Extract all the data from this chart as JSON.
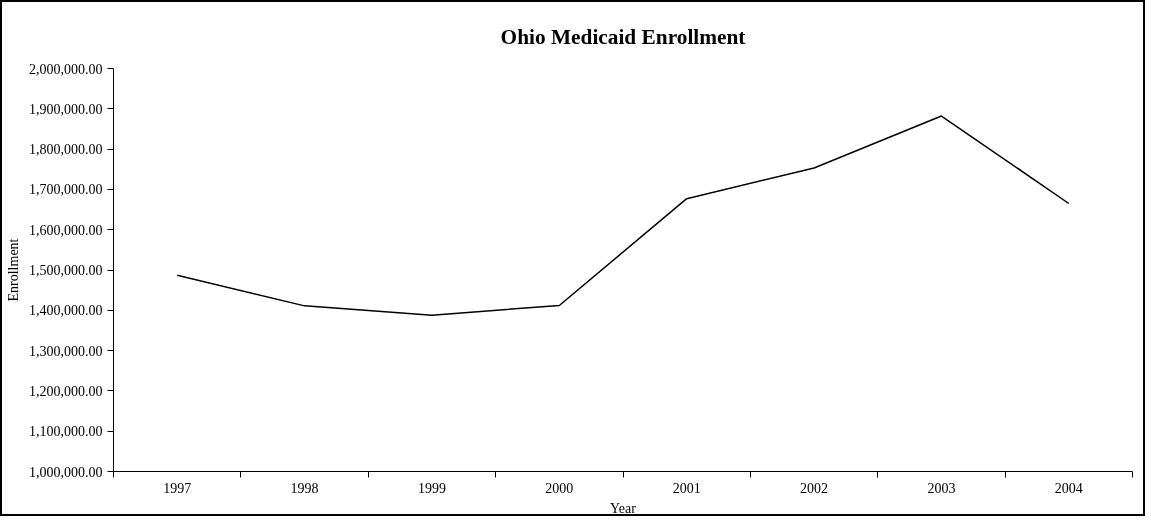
{
  "chart_data": {
    "type": "line",
    "title": "Ohio Medicaid Enrollment",
    "xlabel": "Year",
    "ylabel": "Enrollment",
    "categories": [
      "1997",
      "1998",
      "1999",
      "2000",
      "2001",
      "2002",
      "2003",
      "2004"
    ],
    "series": [
      {
        "color": "#000000",
        "values": [
          1487000,
          1411000,
          1388000,
          1412000,
          1677000,
          1753000,
          1882000,
          1665000
        ]
      }
    ],
    "ylim": [
      1000000,
      2000000
    ],
    "yticks": [
      {
        "value": 1000000,
        "label": "1,000,000.00"
      },
      {
        "value": 1100000,
        "label": "1,100,000.00"
      },
      {
        "value": 1200000,
        "label": "1,200,000.00"
      },
      {
        "value": 1300000,
        "label": "1,300,000.00"
      },
      {
        "value": 1400000,
        "label": "1,400,000.00"
      },
      {
        "value": 1500000,
        "label": "1,500,000.00"
      },
      {
        "value": 1600000,
        "label": "1,600,000.00"
      },
      {
        "value": 1700000,
        "label": "1,700,000.00"
      },
      {
        "value": 1800000,
        "label": "1,800,000.00"
      },
      {
        "value": 1900000,
        "label": "1,900,000.00"
      },
      {
        "value": 2000000,
        "label": "2,000,000.00"
      }
    ],
    "grid": false,
    "marker": "none",
    "line_style": "solid"
  }
}
